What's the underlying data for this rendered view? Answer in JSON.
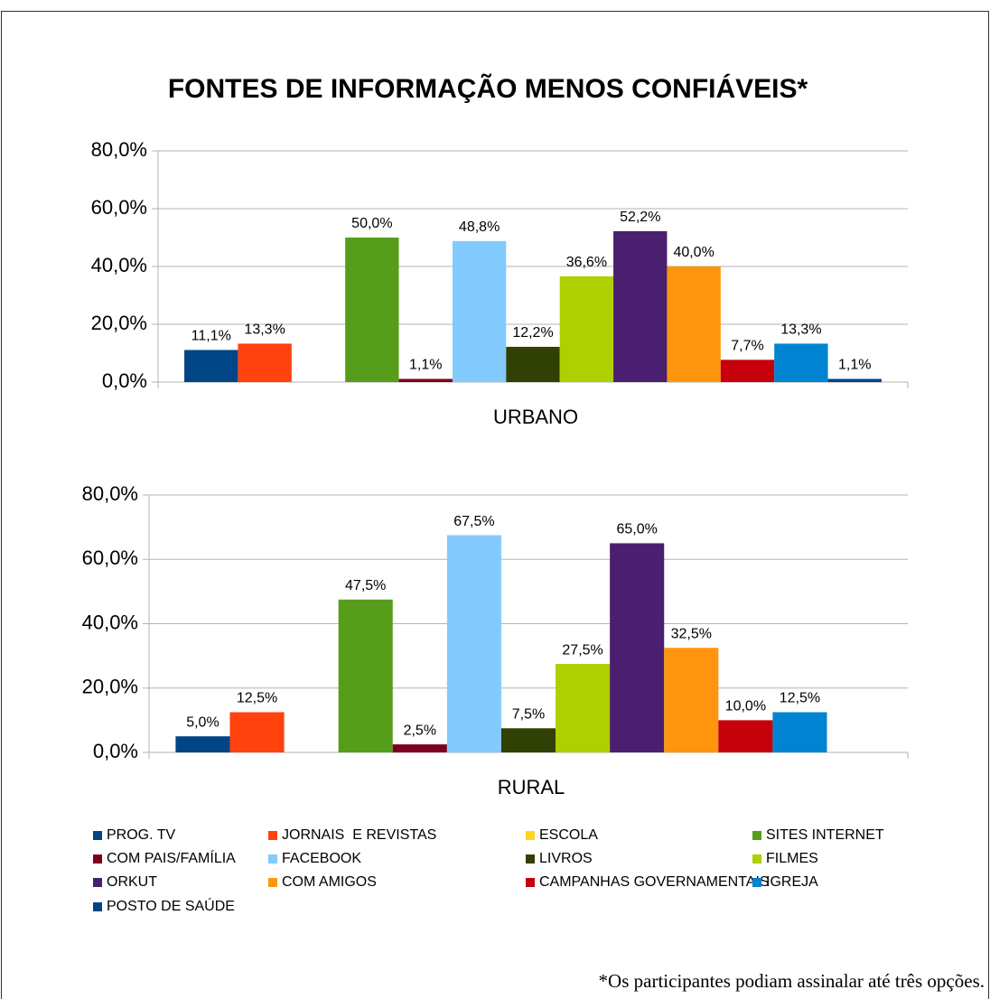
{
  "chart_data": {
    "type": "bar",
    "title": "FONTES DE INFORMAÇÃO MENOS CONFIÁVEIS*",
    "categories": [
      "URBANO",
      "RURAL"
    ],
    "series": [
      {
        "name": "PROG. TV",
        "color": "#004586",
        "values": [
          11.1,
          5.0
        ],
        "value_labels": [
          "11,1%",
          "5,0%"
        ]
      },
      {
        "name": "JORNAIS  E REVISTAS",
        "color": "#ff420e",
        "values": [
          13.3,
          12.5
        ],
        "value_labels": [
          "13,3%",
          "12,5%"
        ]
      },
      {
        "name": "ESCOLA",
        "color": "#ffd320",
        "values": [
          null,
          null
        ],
        "value_labels": [
          null,
          null
        ]
      },
      {
        "name": "SITES INTERNET",
        "color": "#579d1c",
        "values": [
          50.0,
          47.5
        ],
        "value_labels": [
          "50,0%",
          "47,5%"
        ]
      },
      {
        "name": "COM PAIS/FAMÍLIA",
        "color": "#7e0021",
        "values": [
          1.1,
          2.5
        ],
        "value_labels": [
          "1,1%",
          "2,5%"
        ]
      },
      {
        "name": "FACEBOOK",
        "color": "#83caff",
        "values": [
          48.8,
          67.5
        ],
        "value_labels": [
          "48,8%",
          "67,5%"
        ]
      },
      {
        "name": "LIVROS",
        "color": "#314004",
        "values": [
          12.2,
          7.5
        ],
        "value_labels": [
          "12,2%",
          "7,5%"
        ]
      },
      {
        "name": "FILMES",
        "color": "#aecf00",
        "values": [
          36.6,
          27.5
        ],
        "value_labels": [
          "36,6%",
          "27,5%"
        ]
      },
      {
        "name": "ORKUT",
        "color": "#4b1f6f",
        "values": [
          52.2,
          65.0
        ],
        "value_labels": [
          "52,2%",
          "65,0%"
        ]
      },
      {
        "name": "COM AMIGOS",
        "color": "#ff950e",
        "values": [
          40.0,
          32.5
        ],
        "value_labels": [
          "40,0%",
          "32,5%"
        ]
      },
      {
        "name": "CAMPANHAS GOVERNAMENTAIS",
        "color": "#c5000b",
        "values": [
          7.7,
          10.0
        ],
        "value_labels": [
          "7,7%",
          "10,0%"
        ]
      },
      {
        "name": "IGREJA",
        "color": "#0084d1",
        "values": [
          13.3,
          12.5
        ],
        "value_labels": [
          "13,3%",
          "12,5%"
        ]
      },
      {
        "name": "POSTO DE SAÚDE",
        "color": "#004586",
        "values": [
          1.1,
          null
        ],
        "value_labels": [
          "1,1%",
          null
        ]
      }
    ],
    "ylim": [
      0,
      80
    ],
    "yticks": [
      {
        "value": 0,
        "label": "0,0%"
      },
      {
        "value": 20,
        "label": "20,0%"
      },
      {
        "value": 40,
        "label": "40,0%"
      },
      {
        "value": 60,
        "label": "60,0%"
      },
      {
        "value": 80,
        "label": "80,0%"
      }
    ],
    "grid": true,
    "legend": "bottom",
    "footnote": "*Os participantes podiam assinalar até três opções."
  }
}
